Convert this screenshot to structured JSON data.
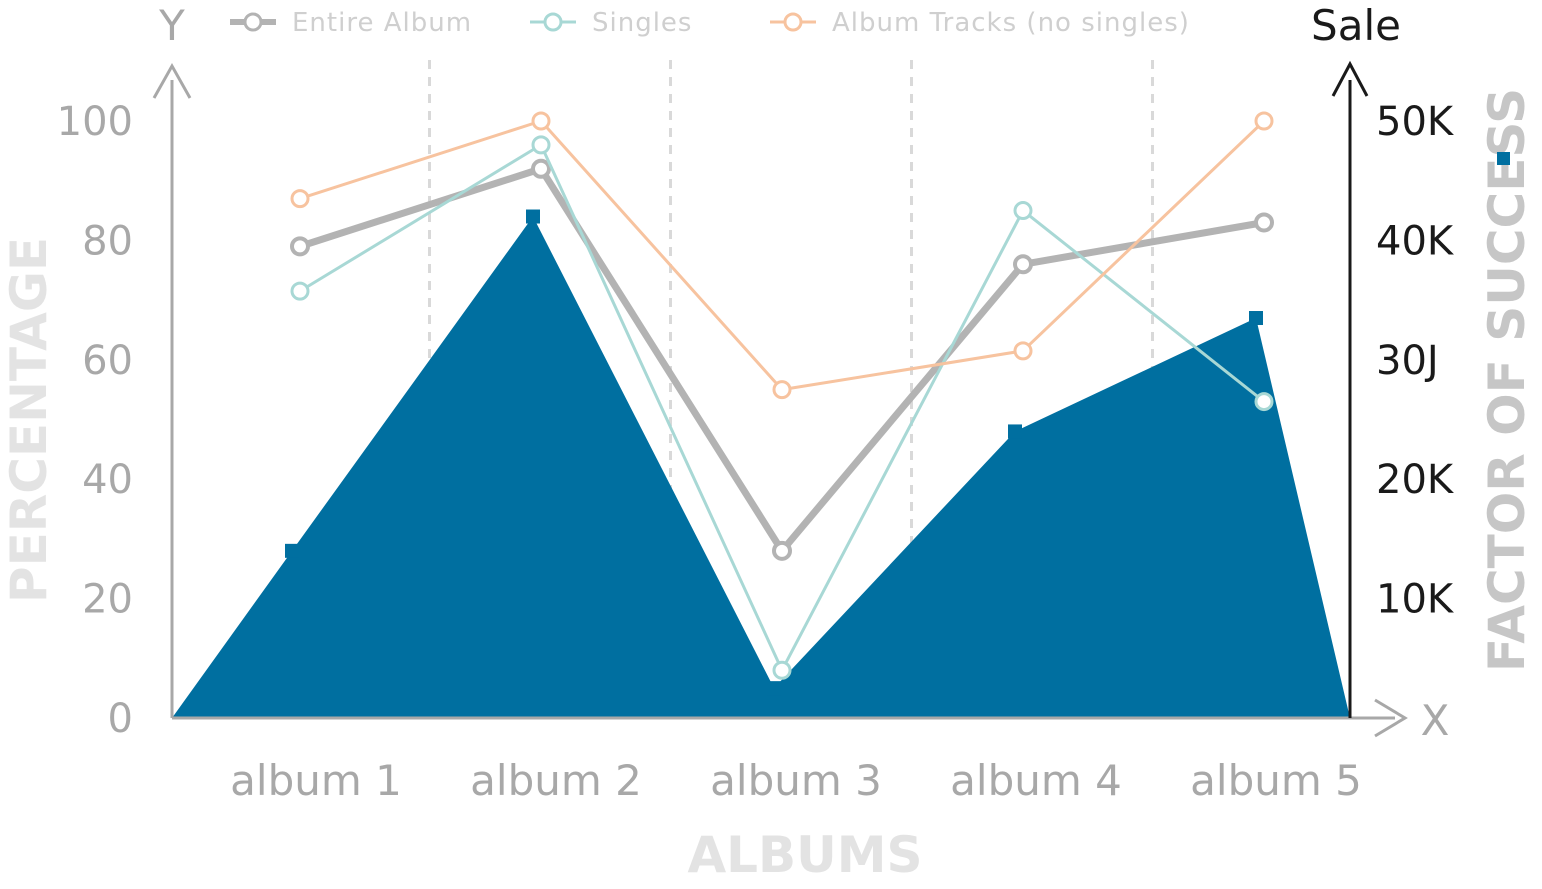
{
  "chart_data": {
    "type": "line",
    "categories": [
      "album 1",
      "album 2",
      "album 3",
      "album 4",
      "album 5"
    ],
    "xlabel": "ALBUMS",
    "ylabel": "PERCENTAGE",
    "y2label": "FACTOR OF SUCCESS",
    "x_axis_letter": "X",
    "y_axis_letter": "Y",
    "y2_axis_title": "Sale",
    "ylim": [
      0,
      100
    ],
    "yticks": [
      "0",
      "20",
      "40",
      "60",
      "80",
      "100"
    ],
    "y2lim": [
      0,
      50000
    ],
    "y2ticks": [
      "10K",
      "20K",
      "30J",
      "40K",
      "50K"
    ],
    "grid": "vertical dashed",
    "legend_position": "top",
    "series": [
      {
        "name": "Entire Album",
        "color": "#b3b3b3",
        "values": [
          79,
          92,
          28,
          76,
          83
        ]
      },
      {
        "name": "Singles",
        "color": "#a8d8d5",
        "values": [
          71.5,
          96,
          8,
          85,
          53
        ]
      },
      {
        "name": "Album Tracks (no singles)",
        "color": "#f7c39f",
        "values": [
          87,
          100,
          55,
          61.5,
          100
        ]
      }
    ],
    "area_series": {
      "color": "#006fa0",
      "axis": "y2",
      "values": [
        14000,
        42000,
        2500,
        24000,
        33500
      ]
    }
  }
}
